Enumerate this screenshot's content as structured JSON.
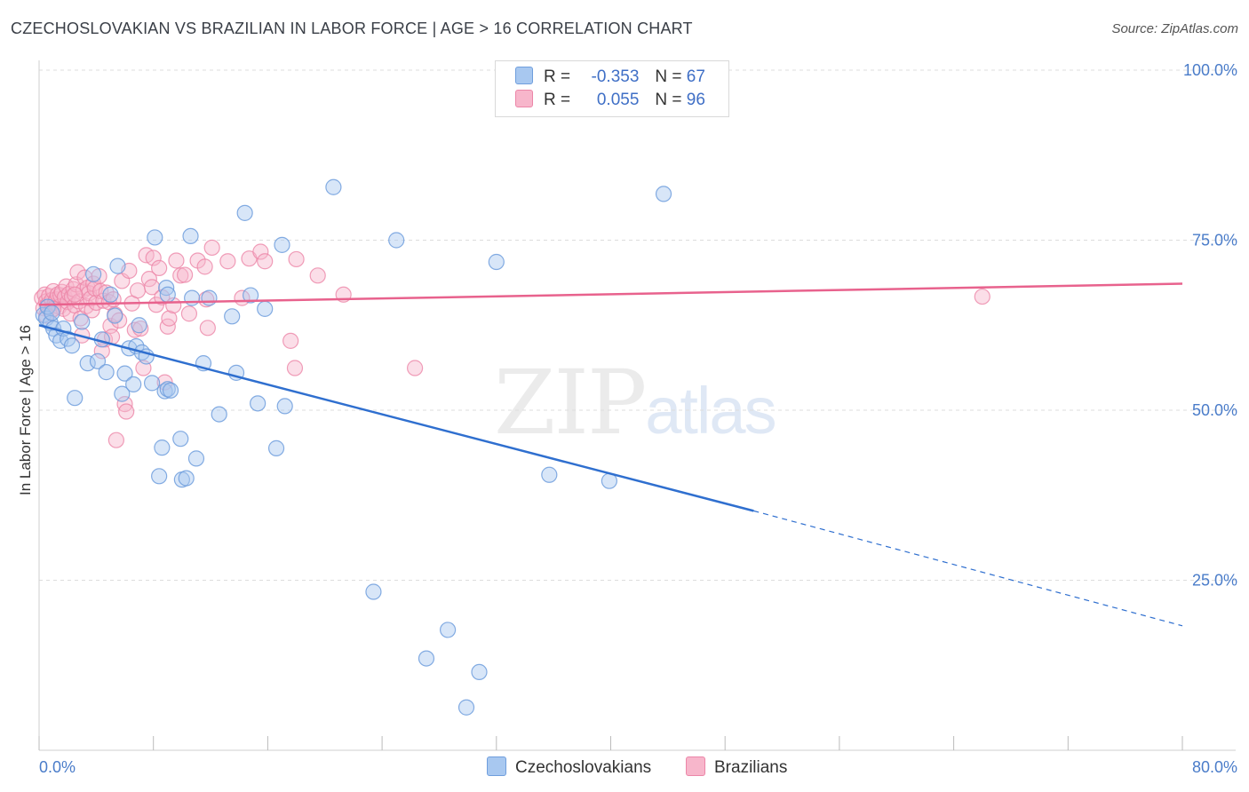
{
  "header": {
    "title": "CZECHOSLOVAKIAN VS BRAZILIAN IN LABOR FORCE | AGE > 16 CORRELATION CHART",
    "source": "Source: ZipAtlas.com"
  },
  "legend": {
    "rows": [
      {
        "r_label": "R =",
        "r_value": "-0.353",
        "n_label": "N =",
        "n_value": "67"
      },
      {
        "r_label": "R =",
        "r_value": "0.055",
        "n_label": "N =",
        "n_value": "96"
      }
    ]
  },
  "bottom_legend": [
    "Czechoslovakians",
    "Brazilians"
  ],
  "watermark": {
    "zip": "ZIP",
    "atlas": "atlas"
  },
  "colors": {
    "czech_fill": "#a8c8f0",
    "czech_stroke": "#6f9edd",
    "czech_line": "#2f6fcf",
    "brazil_fill": "#f7b6cb",
    "brazil_stroke": "#ec86a8",
    "brazil_line": "#e8628d",
    "tick_text": "#4a7cc9",
    "grid": "#dddddd"
  },
  "chart_data": {
    "type": "scatter",
    "title": "CZECHOSLOVAKIAN VS BRAZILIAN IN LABOR FORCE | AGE > 16 CORRELATION CHART",
    "ylabel": "In Labor Force | Age > 16",
    "xlabel": "",
    "xlim": [
      0,
      80
    ],
    "ylim": [
      0,
      100
    ],
    "x_tick_labels": [
      "0.0%",
      "80.0%"
    ],
    "y_tick_labels": [
      "100.0%",
      "75.0%",
      "50.0%",
      "25.0%"
    ],
    "y_ticks": [
      100,
      75,
      50,
      25
    ],
    "grid": true,
    "legend_position": "top-center",
    "series": [
      {
        "name": "Czechoslovakians",
        "r": -0.353,
        "n": 67,
        "trend": {
          "x0": 0,
          "y0": 62.5,
          "x1": 50,
          "y1": 35.2,
          "dashed_to_x": 80,
          "dashed_y1": 18.3
        },
        "points": [
          [
            0.3,
            64.0
          ],
          [
            0.5,
            63.5
          ],
          [
            0.6,
            65.2
          ],
          [
            0.8,
            62.8
          ],
          [
            1.0,
            62.0
          ],
          [
            1.2,
            61.0
          ],
          [
            1.5,
            60.2
          ],
          [
            1.7,
            62.0
          ],
          [
            2.0,
            60.5
          ],
          [
            2.3,
            59.5
          ],
          [
            2.5,
            51.8
          ],
          [
            3.0,
            63.0
          ],
          [
            3.4,
            56.9
          ],
          [
            3.8,
            70.0
          ],
          [
            4.1,
            57.2
          ],
          [
            4.4,
            60.4
          ],
          [
            4.7,
            55.6
          ],
          [
            5.0,
            67.0
          ],
          [
            5.3,
            63.9
          ],
          [
            5.5,
            71.2
          ],
          [
            5.8,
            52.4
          ],
          [
            6.0,
            55.4
          ],
          [
            6.3,
            59.1
          ],
          [
            6.6,
            53.8
          ],
          [
            6.8,
            59.4
          ],
          [
            7.0,
            62.5
          ],
          [
            7.2,
            58.5
          ],
          [
            7.5,
            57.9
          ],
          [
            7.9,
            54.0
          ],
          [
            8.1,
            75.4
          ],
          [
            8.4,
            40.3
          ],
          [
            8.6,
            44.5
          ],
          [
            8.8,
            52.8
          ],
          [
            9.0,
            53.1
          ],
          [
            9.2,
            52.9
          ],
          [
            8.9,
            68.0
          ],
          [
            9.0,
            67.0
          ],
          [
            9.9,
            45.8
          ],
          [
            10.0,
            39.8
          ],
          [
            10.3,
            40.0
          ],
          [
            10.6,
            75.6
          ],
          [
            10.7,
            66.5
          ],
          [
            11.0,
            42.9
          ],
          [
            11.5,
            56.9
          ],
          [
            11.9,
            66.5
          ],
          [
            12.6,
            49.4
          ],
          [
            13.5,
            63.8
          ],
          [
            13.8,
            55.5
          ],
          [
            14.4,
            79.0
          ],
          [
            14.8,
            66.9
          ],
          [
            15.3,
            51.0
          ],
          [
            15.8,
            64.9
          ],
          [
            16.6,
            44.4
          ],
          [
            17.0,
            74.3
          ],
          [
            17.2,
            50.6
          ],
          [
            20.6,
            82.8
          ],
          [
            23.4,
            23.3
          ],
          [
            25.0,
            75.0
          ],
          [
            27.1,
            13.5
          ],
          [
            28.6,
            17.7
          ],
          [
            29.9,
            6.3
          ],
          [
            30.8,
            11.5
          ],
          [
            32.0,
            71.8
          ],
          [
            35.7,
            40.5
          ],
          [
            39.9,
            39.6
          ],
          [
            43.7,
            81.8
          ],
          [
            0.9,
            64.3
          ]
        ]
      },
      {
        "name": "Brazilians",
        "r": 0.055,
        "n": 96,
        "trend": {
          "x0": 0,
          "y0": 65.5,
          "x1": 80,
          "y1": 68.6
        },
        "points": [
          [
            0.2,
            66.5
          ],
          [
            0.3,
            65.0
          ],
          [
            0.4,
            67.0
          ],
          [
            0.5,
            66.0
          ],
          [
            0.6,
            65.5
          ],
          [
            0.7,
            66.8
          ],
          [
            0.8,
            64.5
          ],
          [
            0.9,
            66.2
          ],
          [
            1.0,
            67.5
          ],
          [
            1.1,
            65.8
          ],
          [
            1.2,
            66.3
          ],
          [
            1.3,
            67.0
          ],
          [
            1.4,
            65.2
          ],
          [
            1.5,
            66.9
          ],
          [
            1.6,
            67.4
          ],
          [
            1.7,
            64.9
          ],
          [
            1.8,
            66.6
          ],
          [
            1.9,
            68.2
          ],
          [
            2.0,
            65.9
          ],
          [
            2.1,
            67.1
          ],
          [
            2.2,
            64.2
          ],
          [
            2.3,
            66.7
          ],
          [
            2.4,
            67.8
          ],
          [
            2.5,
            65.4
          ],
          [
            2.6,
            68.5
          ],
          [
            2.7,
            70.3
          ],
          [
            2.8,
            66.0
          ],
          [
            2.9,
            63.5
          ],
          [
            3.0,
            61.0
          ],
          [
            3.1,
            67.6
          ],
          [
            3.2,
            69.5
          ],
          [
            3.3,
            65.3
          ],
          [
            3.4,
            68.0
          ],
          [
            3.5,
            67.2
          ],
          [
            3.6,
            66.4
          ],
          [
            3.7,
            64.7
          ],
          [
            3.8,
            68.6
          ],
          [
            3.9,
            67.9
          ],
          [
            4.0,
            65.8
          ],
          [
            4.2,
            69.7
          ],
          [
            4.3,
            67.5
          ],
          [
            4.4,
            58.7
          ],
          [
            4.5,
            66.1
          ],
          [
            4.6,
            60.4
          ],
          [
            4.7,
            67.3
          ],
          [
            4.9,
            65.9
          ],
          [
            5.0,
            62.4
          ],
          [
            5.1,
            60.8
          ],
          [
            5.2,
            66.3
          ],
          [
            5.3,
            64.1
          ],
          [
            5.4,
            45.6
          ],
          [
            5.6,
            63.2
          ],
          [
            5.8,
            69.0
          ],
          [
            6.0,
            50.9
          ],
          [
            6.1,
            49.8
          ],
          [
            6.3,
            70.5
          ],
          [
            6.5,
            65.7
          ],
          [
            6.7,
            61.8
          ],
          [
            6.9,
            67.6
          ],
          [
            7.1,
            62.0
          ],
          [
            7.3,
            56.2
          ],
          [
            7.5,
            72.8
          ],
          [
            7.7,
            69.3
          ],
          [
            7.9,
            68.1
          ],
          [
            8.0,
            72.4
          ],
          [
            8.2,
            65.5
          ],
          [
            8.4,
            70.9
          ],
          [
            8.6,
            66.6
          ],
          [
            8.8,
            54.1
          ],
          [
            9.0,
            62.3
          ],
          [
            9.1,
            63.5
          ],
          [
            9.4,
            65.4
          ],
          [
            9.6,
            72.0
          ],
          [
            9.9,
            69.8
          ],
          [
            10.2,
            69.9
          ],
          [
            10.5,
            64.2
          ],
          [
            11.1,
            72.0
          ],
          [
            11.6,
            71.1
          ],
          [
            11.7,
            66.3
          ],
          [
            11.8,
            62.1
          ],
          [
            12.1,
            73.9
          ],
          [
            13.2,
            71.9
          ],
          [
            14.2,
            66.5
          ],
          [
            14.7,
            72.3
          ],
          [
            15.5,
            73.3
          ],
          [
            15.8,
            71.9
          ],
          [
            17.6,
            60.2
          ],
          [
            17.9,
            56.2
          ],
          [
            18.0,
            72.2
          ],
          [
            19.5,
            69.8
          ],
          [
            21.3,
            67.0
          ],
          [
            26.3,
            56.2
          ],
          [
            0.5,
            63.9
          ],
          [
            1.0,
            64.9
          ],
          [
            2.5,
            67.0
          ],
          [
            66.0,
            66.7
          ]
        ]
      }
    ]
  }
}
